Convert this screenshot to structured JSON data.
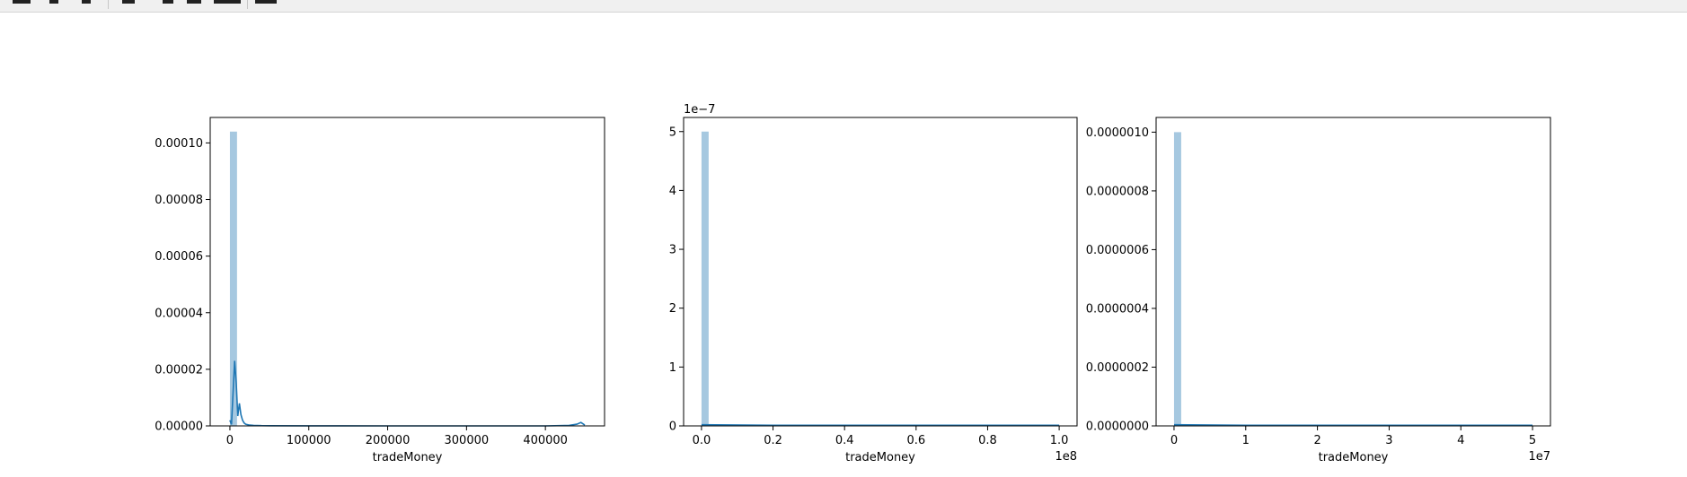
{
  "toolbar": {
    "icons": [
      "pan-icon",
      "back-icon",
      "forward-icon",
      "move-icon",
      "zoom-icon",
      "configure-subplots-icon",
      "edit-axis-icon",
      "save-icon"
    ]
  },
  "chart_data": [
    {
      "type": "bar",
      "xlabel": "tradeMoney",
      "ylabel": "",
      "xlim": [
        -25000,
        475000
      ],
      "ylim": [
        0,
        0.000109
      ],
      "x_ticks": [
        0,
        100000,
        200000,
        300000,
        400000
      ],
      "x_tick_labels": [
        "0",
        "100000",
        "200000",
        "300000",
        "400000"
      ],
      "x_offset_label": "",
      "y_ticks": [
        0,
        2e-05,
        4e-05,
        6e-05,
        8e-05,
        0.0001
      ],
      "y_tick_labels": [
        "0.00000",
        "0.00002",
        "0.00004",
        "0.00006",
        "0.00008",
        "0.00010"
      ],
      "y_offset_label": "",
      "bar_color": "#a6c8e0",
      "kde_color": "#1f77b4",
      "bins": [
        {
          "x0": 0,
          "x1": 9000,
          "density": 0.000104
        }
      ],
      "kde": {
        "x": [
          0,
          2000,
          4000,
          6000,
          8000,
          10000,
          12000,
          14000,
          16000,
          18000,
          20000,
          25000,
          30000,
          40000,
          50000,
          100000,
          200000,
          300000,
          400000,
          430000,
          440000,
          445000,
          450000
        ],
        "y": [
          2e-06,
          5e-07,
          1.2e-05,
          2.3e-05,
          1.5e-05,
          3.5e-06,
          8e-06,
          4e-06,
          2e-06,
          1e-06,
          6e-07,
          3e-07,
          2e-07,
          1e-07,
          5e-08,
          2e-08,
          1e-08,
          1e-08,
          1e-08,
          2e-07,
          6e-07,
          1.2e-06,
          3e-07
        ]
      },
      "grid": false
    },
    {
      "type": "bar",
      "xlabel": "tradeMoney",
      "ylabel": "",
      "xlim": [
        -5000000,
        105000000
      ],
      "ylim": [
        0,
        5.24e-07
      ],
      "x_ticks": [
        0,
        20000000,
        40000000,
        60000000,
        80000000,
        100000000
      ],
      "x_tick_labels": [
        "0.0",
        "0.2",
        "0.4",
        "0.6",
        "0.8",
        "1.0"
      ],
      "x_offset_label": "1e8",
      "y_ticks": [
        0,
        1e-07,
        2e-07,
        3e-07,
        4e-07,
        5e-07
      ],
      "y_tick_labels": [
        "0",
        "1",
        "2",
        "3",
        "4",
        "5"
      ],
      "y_offset_label": "1e−7",
      "bar_color": "#a6c8e0",
      "kde_color": "#1f77b4",
      "bins": [
        {
          "x0": 0,
          "x1": 2000000,
          "density": 5e-07
        }
      ],
      "kde": {
        "x": [
          0,
          20000000,
          40000000,
          60000000,
          80000000,
          100000000
        ],
        "y": [
          2e-09,
          1e-09,
          1e-09,
          1e-09,
          1e-09,
          1e-09
        ]
      },
      "grid": false
    },
    {
      "type": "bar",
      "xlabel": "tradeMoney",
      "ylabel": "",
      "xlim": [
        -2500000,
        52500000
      ],
      "ylim": [
        0,
        1.05e-06
      ],
      "x_ticks": [
        0,
        10000000,
        20000000,
        30000000,
        40000000,
        50000000
      ],
      "x_tick_labels": [
        "0",
        "1",
        "2",
        "3",
        "4",
        "5"
      ],
      "x_offset_label": "1e7",
      "y_ticks": [
        0,
        2e-07,
        4e-07,
        6e-07,
        8e-07,
        1e-06
      ],
      "y_tick_labels": [
        "0.0000000",
        "0.0000002",
        "0.0000004",
        "0.0000006",
        "0.0000008",
        "0.0000010"
      ],
      "y_offset_label": "",
      "bar_color": "#a6c8e0",
      "kde_color": "#1f77b4",
      "bins": [
        {
          "x0": 0,
          "x1": 1000000,
          "density": 1e-06
        }
      ],
      "kde": {
        "x": [
          0,
          10000000,
          20000000,
          30000000,
          40000000,
          50000000
        ],
        "y": [
          4e-09,
          2e-09,
          2e-09,
          2e-09,
          2e-09,
          2e-09
        ]
      },
      "grid": false
    }
  ]
}
